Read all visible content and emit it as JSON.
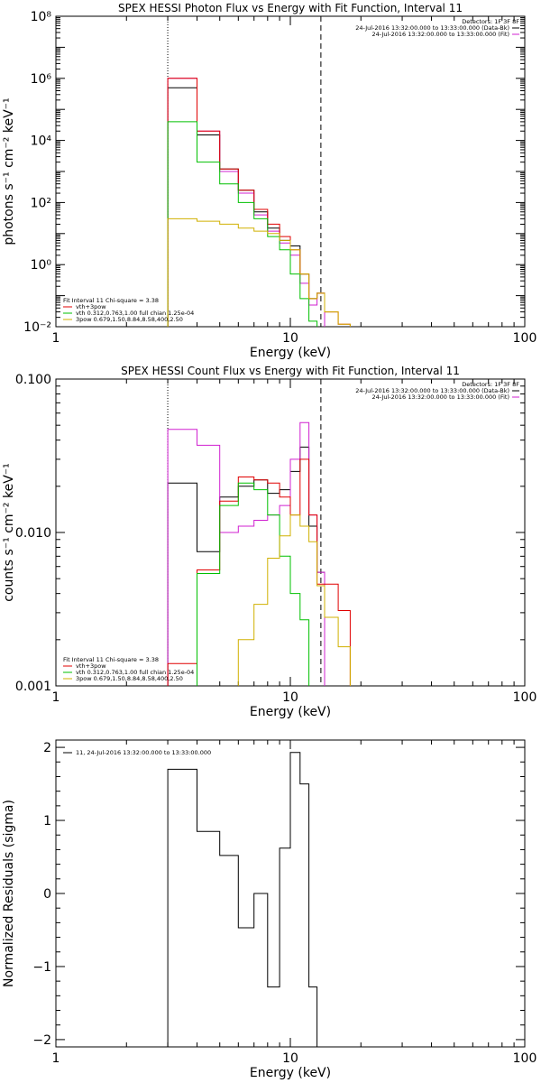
{
  "chart_data": [
    {
      "type": "line",
      "title": "SPEX HESSI Photon Flux vs Energy with Fit Function, Interval 11",
      "xlabel": "Energy (keV)",
      "ylabel": "photons s⁻¹ cm⁻² keV⁻¹",
      "xscale": "log",
      "yscale": "log",
      "xlim": [
        1,
        100
      ],
      "ylim": [
        0.01,
        100000000
      ],
      "xticks": [
        {
          "v": 1,
          "label": "1"
        },
        {
          "v": 10,
          "label": "10"
        },
        {
          "v": 100,
          "label": "100"
        }
      ],
      "yticks": [
        {
          "v": 0.01,
          "label": "10⁻²"
        },
        {
          "v": 1,
          "label": "10⁰"
        },
        {
          "v": 100,
          "label": "10²"
        },
        {
          "v": 10000,
          "label": "10⁴"
        },
        {
          "v": 1000000,
          "label": "10⁶"
        },
        {
          "v": 100000000,
          "label": "10⁸"
        }
      ],
      "vlines": [
        {
          "x": 3.0,
          "style": "dotted"
        },
        {
          "x": 13.5,
          "style": "dashed"
        }
      ],
      "legend_tr": [
        {
          "text": "Detectors: 1F 3F 8F",
          "color": ""
        },
        {
          "text": "24-Jul-2016 13:32:00.000 to 13:33:00.000 (Data-Bk)",
          "color": "#000000"
        },
        {
          "text": "24-Jul-2016 13:32:00.000 to 13:33:00.000 (Fit)",
          "color": "#d020d0"
        }
      ],
      "legend_bl": [
        {
          "text": "Fit Interval 11    Chi-square = 3.38",
          "color": ""
        },
        {
          "text": "vth+3pow",
          "color": "#e00000"
        },
        {
          "text": "vth 0.312,0.763,1.00  full chian 1.25e-04",
          "color": "#00c000"
        },
        {
          "text": "3pow 0.679,1.50,8.84,8.58,400,2.50",
          "color": "#d0b000"
        }
      ],
      "edges": [
        3.0,
        4.0,
        5.0,
        6.0,
        7.0,
        8.0,
        9.0,
        10.0,
        11.0,
        12.0,
        13.0,
        14.0,
        16.0,
        18.0
      ],
      "series": [
        {
          "color": "#000000",
          "values": [
            500000,
            15000,
            1200,
            250,
            50,
            15,
            6,
            4,
            0.5,
            0.08,
            0.12,
            null,
            null
          ]
        },
        {
          "color": "#d020d0",
          "values": [
            1000000,
            20000,
            1000,
            200,
            40,
            12,
            5,
            2,
            0.25,
            0.05,
            0.12,
            null,
            null
          ]
        },
        {
          "color": "#e00000",
          "values": [
            1000000,
            20000,
            1200,
            250,
            60,
            20,
            8,
            3,
            0.5,
            0.08,
            0.12,
            0.03,
            0.012
          ]
        },
        {
          "color": "#00c000",
          "values": [
            40000,
            2000,
            400,
            100,
            30,
            8,
            3,
            0.5,
            0.08,
            0.015,
            null,
            null,
            null
          ]
        },
        {
          "color": "#d0b000",
          "values": [
            30,
            25,
            20,
            15,
            12,
            10,
            6,
            3,
            0.5,
            0.08,
            0.12,
            0.03,
            0.012
          ]
        }
      ]
    },
    {
      "type": "line",
      "title": "SPEX HESSI Count Flux vs Energy with Fit Function, Interval 11",
      "xlabel": "Energy (keV)",
      "ylabel": "counts s⁻¹ cm⁻² keV⁻¹",
      "xscale": "log",
      "yscale": "log",
      "xlim": [
        1,
        100
      ],
      "ylim": [
        0.001,
        0.1
      ],
      "xticks": [
        {
          "v": 1,
          "label": "1"
        },
        {
          "v": 10,
          "label": "10"
        },
        {
          "v": 100,
          "label": "100"
        }
      ],
      "yticks": [
        {
          "v": 0.001,
          "label": "0.001"
        },
        {
          "v": 0.01,
          "label": "0.010"
        },
        {
          "v": 0.1,
          "label": "0.100"
        }
      ],
      "vlines": [
        {
          "x": 3.0,
          "style": "dotted"
        },
        {
          "x": 13.5,
          "style": "dashed"
        }
      ],
      "legend_tr": [
        {
          "text": "Detectors: 1F 3F 8F",
          "color": ""
        },
        {
          "text": "24-Jul-2016 13:32:00.000 to 13:33:00.000 (Data-Bk)",
          "color": "#000000"
        },
        {
          "text": "24-Jul-2016 13:32:00.000 to 13:33:00.000 (Fit)",
          "color": "#d020d0"
        }
      ],
      "legend_bl": [
        {
          "text": "Fit Interval 11    Chi-square = 3.38",
          "color": ""
        },
        {
          "text": "vth+3pow",
          "color": "#e00000"
        },
        {
          "text": "vth 0.312,0.763,1.00  full chian 1.25e-04",
          "color": "#00c000"
        },
        {
          "text": "3pow 0.679,1.50,8.84,8.58,400,2.50",
          "color": "#d0b000"
        }
      ],
      "edges": [
        3.0,
        4.0,
        5.0,
        6.0,
        7.0,
        8.0,
        9.0,
        10.0,
        11.0,
        12.0,
        13.0,
        14.0,
        16.0,
        18.0
      ],
      "series": [
        {
          "color": "#000000",
          "values": [
            0.021,
            0.0075,
            0.017,
            0.02,
            0.022,
            0.018,
            0.019,
            0.025,
            0.036,
            0.011,
            0.0055,
            null,
            null
          ]
        },
        {
          "color": "#d020d0",
          "values": [
            0.047,
            0.037,
            0.01,
            0.011,
            0.012,
            0.013,
            0.015,
            0.03,
            0.052,
            0.013,
            0.0055,
            null,
            null
          ]
        },
        {
          "color": "#e00000",
          "values": [
            0.0014,
            0.0057,
            0.016,
            0.023,
            0.022,
            0.021,
            0.017,
            0.013,
            0.03,
            0.013,
            0.0046,
            0.0046,
            0.0031
          ]
        },
        {
          "color": "#00c000",
          "values": [
            null,
            0.0054,
            0.015,
            0.021,
            0.019,
            0.013,
            0.007,
            0.004,
            0.0027,
            null,
            null,
            null,
            null
          ]
        },
        {
          "color": "#d0b000",
          "values": [
            null,
            null,
            null,
            0.002,
            0.0034,
            0.0068,
            0.0095,
            0.013,
            0.011,
            0.0087,
            0.0045,
            0.0028,
            0.0018
          ]
        }
      ]
    },
    {
      "type": "line",
      "title": "",
      "xlabel": "Energy (keV)",
      "ylabel": "Normalized Residuals (sigma)",
      "xscale": "log",
      "yscale": "linear",
      "xlim": [
        1,
        100
      ],
      "ylim": [
        -2.1,
        2.1
      ],
      "xticks": [
        {
          "v": 1,
          "label": "1"
        },
        {
          "v": 10,
          "label": "10"
        },
        {
          "v": 100,
          "label": "100"
        }
      ],
      "yticks": [
        {
          "v": -2,
          "label": "−2"
        },
        {
          "v": -1,
          "label": "−1"
        },
        {
          "v": 0,
          "label": "0"
        },
        {
          "v": 1,
          "label": "1"
        },
        {
          "v": 2,
          "label": "2"
        }
      ],
      "vlines": [],
      "legend_tr": [],
      "legend_bl": [],
      "legend_tl": [
        {
          "text": "11, 24-Jul-2016 13:32:00.000 to 13:33:00.000",
          "color": "#000000"
        }
      ],
      "edges": [
        3.0,
        4.0,
        5.0,
        6.0,
        7.0,
        8.0,
        9.0,
        10.0,
        11.0,
        12.0,
        13.0,
        14.0
      ],
      "series": [
        {
          "color": "#000000",
          "values": [
            1.7,
            0.85,
            0.52,
            -0.47,
            0.0,
            -1.28,
            0.62,
            1.93,
            1.5,
            -1.28,
            -2.1
          ]
        }
      ]
    }
  ]
}
